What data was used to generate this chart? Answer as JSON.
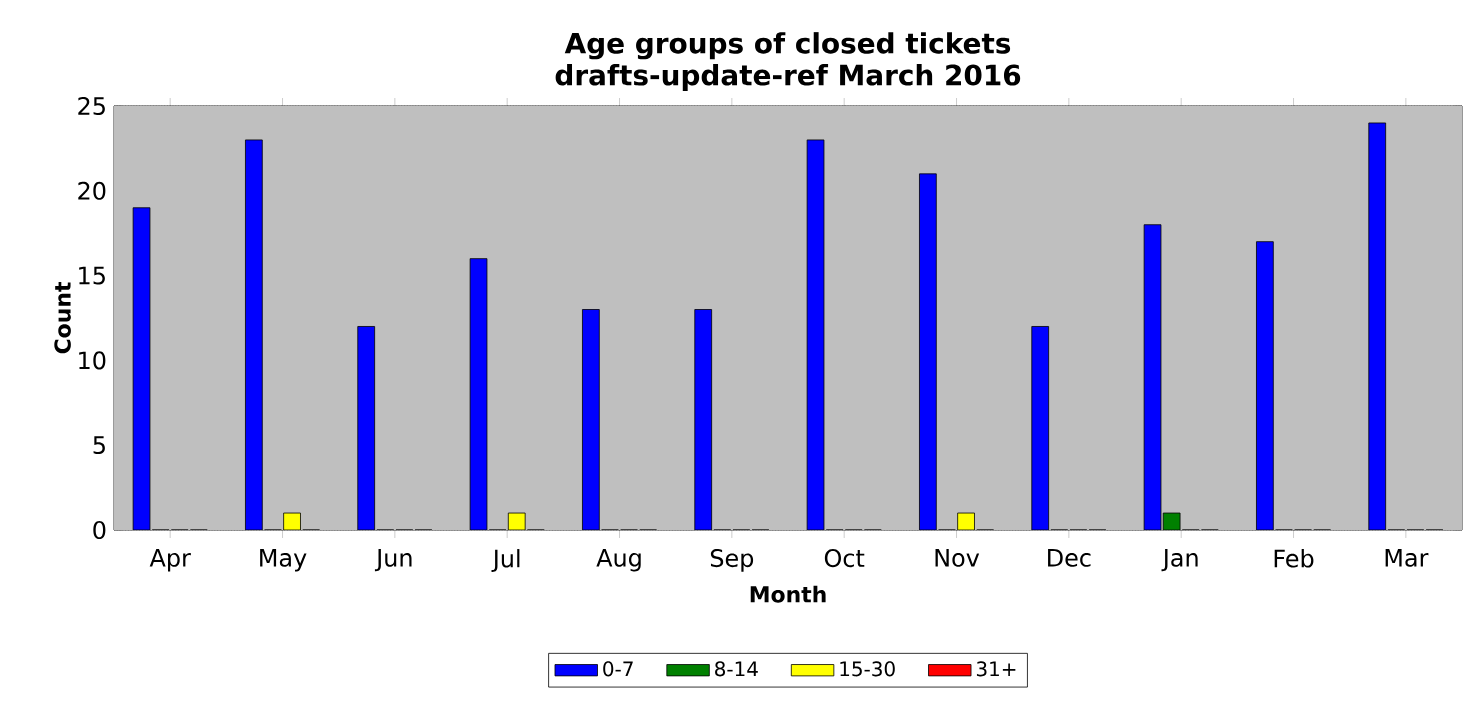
{
  "chart_data": {
    "type": "bar",
    "title": "Age groups of closed tickets\ndrafts-update-ref March 2016",
    "xlabel": "Month",
    "ylabel": "Count",
    "categories": [
      "Apr",
      "May",
      "Jun",
      "Jul",
      "Aug",
      "Sep",
      "Oct",
      "Nov",
      "Dec",
      "Jan",
      "Feb",
      "Mar"
    ],
    "series": [
      {
        "name": "0-7",
        "color": "#0000ff",
        "values": [
          19,
          23,
          12,
          16,
          13,
          13,
          23,
          21,
          12,
          18,
          17,
          24
        ]
      },
      {
        "name": "8-14",
        "color": "#008000",
        "values": [
          0,
          0,
          0,
          0,
          0,
          0,
          0,
          0,
          0,
          1,
          0,
          0
        ]
      },
      {
        "name": "15-30",
        "color": "#ffff00",
        "values": [
          0,
          1,
          0,
          1,
          0,
          0,
          0,
          1,
          0,
          0,
          0,
          0
        ]
      },
      {
        "name": "31+",
        "color": "#ff0000",
        "values": [
          0,
          0,
          0,
          0,
          0,
          0,
          0,
          0,
          0,
          0,
          0,
          0
        ]
      }
    ],
    "ylim": [
      0,
      25
    ],
    "yticks": [
      0,
      5,
      10,
      15,
      20,
      25
    ],
    "grid": "y",
    "legend": "bottom"
  }
}
